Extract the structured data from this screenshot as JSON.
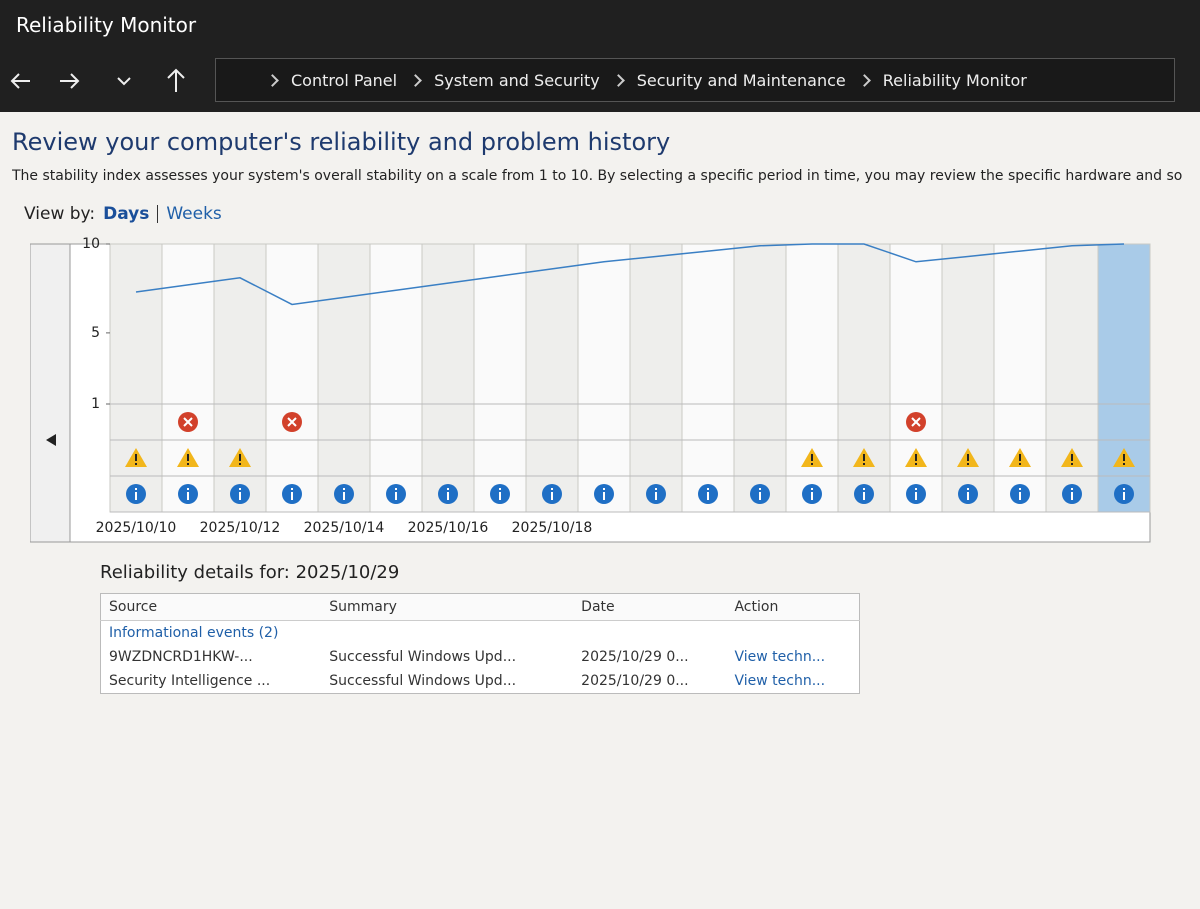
{
  "window": {
    "title": "Reliability Monitor"
  },
  "breadcrumb": [
    "Control Panel",
    "System and Security",
    "Security and Maintenance",
    "Reliability Monitor"
  ],
  "heading": "Review your computer's reliability and problem history",
  "description": "The stability index assesses your system's overall stability on a scale from 1 to 10. By selecting a specific period in time, you may review the specific hardware and software problems that have impacted your system.",
  "view_by": {
    "label": "View by:",
    "options": [
      "Days",
      "Weeks"
    ]
  },
  "chart": {
    "categories": [
      "2025/10/10",
      null,
      "2025/10/12",
      null,
      "2025/10/14",
      null,
      "2025/10/16",
      null,
      "2025/10/18",
      null,
      null,
      null,
      null,
      null,
      null,
      null,
      null,
      null,
      null,
      null
    ],
    "stability": [
      7.3,
      7.7,
      8.1,
      6.6,
      7.0,
      7.4,
      7.8,
      8.2,
      8.6,
      9.0,
      9.3,
      9.6,
      9.9,
      10,
      10,
      9.0,
      9.3,
      9.6,
      9.9,
      10
    ],
    "color": "#3a7fc4",
    "ylim": [
      1,
      10
    ],
    "yticks": [
      10,
      5,
      1
    ],
    "errors": [
      0,
      1,
      0,
      1,
      0,
      0,
      0,
      0,
      0,
      0,
      0,
      0,
      0,
      0,
      0,
      1,
      0,
      0,
      0,
      0
    ],
    "warnings": [
      1,
      1,
      1,
      0,
      0,
      0,
      0,
      0,
      0,
      0,
      0,
      0,
      0,
      1,
      1,
      1,
      1,
      1,
      1,
      1
    ],
    "information": [
      1,
      1,
      1,
      1,
      1,
      1,
      1,
      1,
      1,
      1,
      1,
      1,
      1,
      1,
      1,
      1,
      1,
      1,
      1,
      1
    ]
  },
  "details": {
    "title": "Reliability details for: 2025/10/29",
    "columns": [
      "Source",
      "Summary",
      "Date",
      "Action"
    ],
    "group": "Informational events (2)",
    "rows": [
      [
        "9WZDNCRD1HKW-...",
        "Successful Windows Upd...",
        "2025/10/29 0...",
        "View techn..."
      ],
      [
        "Security Intelligence ...",
        "Successful Windows Upd...",
        "2025/10/29 0...",
        "View techn..."
      ]
    ]
  }
}
